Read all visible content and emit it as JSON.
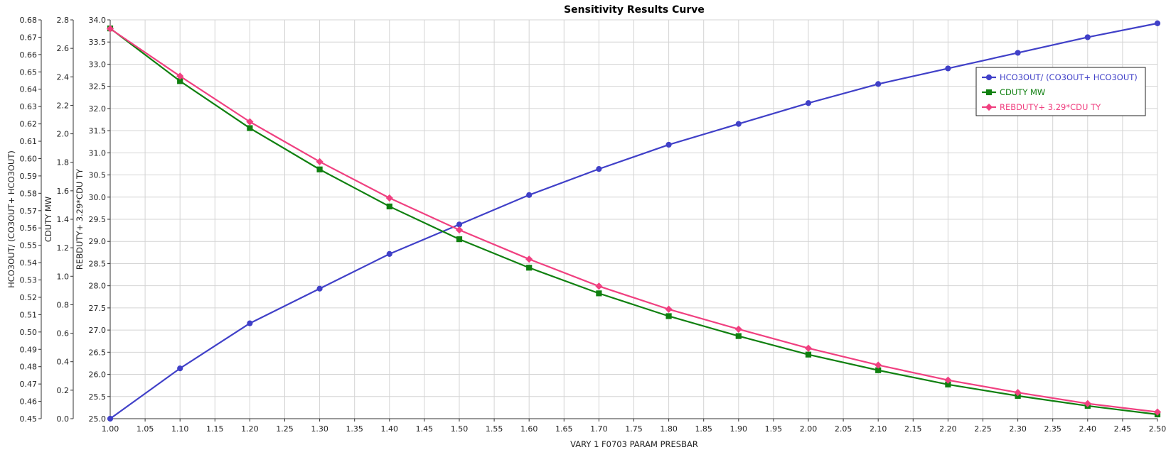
{
  "chart_data": {
    "type": "line",
    "title": "Sensitivity Results Curve",
    "xlabel": "VARY   1 F0703 PARAM PRESBAR",
    "x": [
      1.0,
      1.1,
      1.2,
      1.3,
      1.4,
      1.5,
      1.6,
      1.7,
      1.8,
      1.9,
      2.0,
      2.1,
      2.2,
      2.3,
      2.4,
      2.5
    ],
    "xlim": [
      1.0,
      2.5
    ],
    "xtick_step": 0.05,
    "grid": true,
    "legend_position": "top-right",
    "axes": [
      {
        "id": "ax1",
        "label": "HCO3OUT/ (CO3OUT+ HCO3OUT)",
        "ylim": [
          0.45,
          0.68
        ],
        "step": 0.01,
        "decimals": 2
      },
      {
        "id": "ax2",
        "label": "CDUTY MW",
        "ylim": [
          0.0,
          2.8
        ],
        "step": 0.2,
        "decimals": 1
      },
      {
        "id": "ax3",
        "label": "REBDUTY+ 3.29*CDU TY",
        "ylim": [
          25.0,
          34.0
        ],
        "step": 0.5,
        "decimals": 1
      }
    ],
    "series": [
      {
        "name": "HCO3OUT/ (CO3OUT+ HCO3OUT)",
        "axis": "ax1",
        "color": "#4040c8",
        "marker": "circle",
        "values": [
          0.45,
          0.479,
          0.505,
          0.525,
          0.545,
          0.562,
          0.579,
          0.594,
          0.608,
          0.62,
          0.632,
          0.643,
          0.652,
          0.661,
          0.67,
          0.678
        ]
      },
      {
        "name": "CDUTY MW",
        "axis": "ax2",
        "color": "#108010",
        "marker": "square",
        "values": [
          2.74,
          2.37,
          2.04,
          1.75,
          1.49,
          1.26,
          1.06,
          0.88,
          0.72,
          0.58,
          0.45,
          0.34,
          0.24,
          0.16,
          0.09,
          0.03
        ]
      },
      {
        "name": "REBDUTY+ 3.29*CDU TY",
        "axis": "ax3",
        "color": "#f04080",
        "marker": "diamond",
        "values": [
          33.8,
          32.73,
          31.7,
          30.8,
          29.98,
          29.26,
          28.6,
          27.99,
          27.47,
          27.02,
          26.59,
          26.21,
          25.87,
          25.59,
          25.34,
          25.15
        ]
      }
    ]
  }
}
